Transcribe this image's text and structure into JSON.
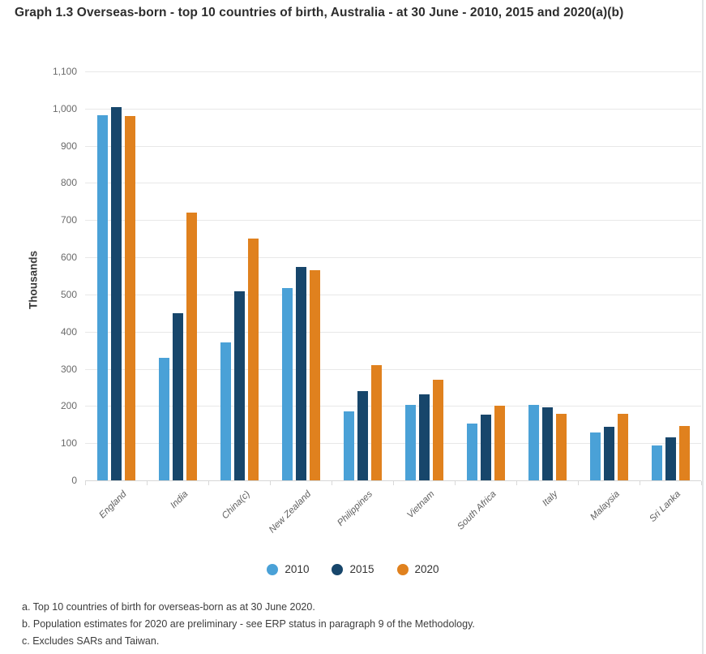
{
  "page": {
    "title": "Graph 1.3 Overseas-born - top 10 countries of birth, Australia - at 30 June - 2010, 2015 and 2020(a)(b)"
  },
  "chart_data": {
    "type": "bar",
    "title": "Graph 1.3 Overseas-born - top 10 countries of birth, Australia - at 30 June - 2010, 2015 and 2020(a)(b)",
    "xlabel": "",
    "ylabel": "Thousands",
    "ylim": [
      0,
      1100
    ],
    "ytick_step": 100,
    "grid": true,
    "legend_position": "bottom-center",
    "categories": [
      "England",
      "India",
      "China(c)",
      "New Zealand",
      "Philippines",
      "Vietnam",
      "South Africa",
      "Italy",
      "Malaysia",
      "Sri Lanka"
    ],
    "series": [
      {
        "name": "2010",
        "color": "#4AA1D7",
        "values": [
          983,
          329,
          370,
          518,
          185,
          203,
          153,
          202,
          128,
          93
        ]
      },
      {
        "name": "2015",
        "color": "#17466B",
        "values": [
          1004,
          449,
          509,
          573,
          240,
          232,
          176,
          196,
          143,
          116
        ]
      },
      {
        "name": "2020",
        "color": "#E0811E",
        "values": [
          980,
          721,
          650,
          565,
          310,
          270,
          200,
          178,
          178,
          147
        ]
      }
    ]
  },
  "footnotes": [
    "a. Top 10 countries of birth for overseas-born as at 30 June 2020.",
    "b. Population estimates for 2020 are preliminary - see ERP status in paragraph 9 of the Methodology.",
    "c. Excludes SARs and Taiwan."
  ],
  "colors": {
    "series_2010": "#4AA1D7",
    "series_2015": "#17466B",
    "series_2020": "#E0811E",
    "gridline": "#e8e8e8",
    "axis_line": "#d6d6d6",
    "tick_text": "#6a6a6a",
    "title_text": "#2d2d2d",
    "footnote_text": "#3c3c3c"
  }
}
